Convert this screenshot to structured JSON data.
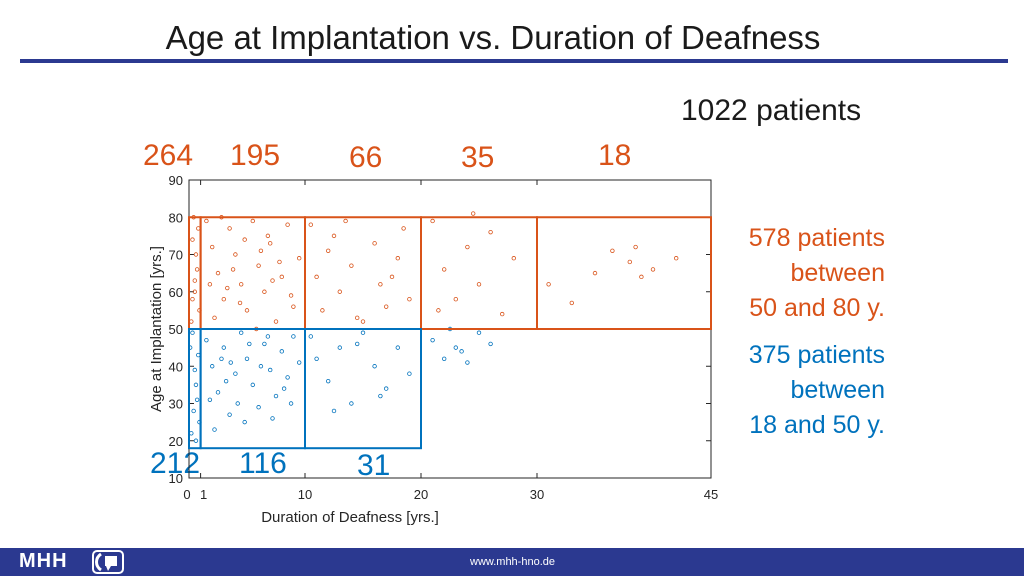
{
  "slide": {
    "title": "Age at Implantation vs. Duration of Deafness",
    "patients_total": "1022 patients",
    "side_text_orange": [
      "578 patients",
      "between",
      "50 and 80 y."
    ],
    "side_text_blue": [
      "375 patients",
      "between",
      "18 and 50 y."
    ]
  },
  "counts": {
    "orange": [
      "264",
      "195",
      "66",
      "35",
      "18"
    ],
    "blue": [
      "212",
      "116",
      "31"
    ]
  },
  "footer": {
    "logo": "MHH",
    "url": "www.mhh-hno.de"
  },
  "colors": {
    "orange": "#d95319",
    "blue": "#0072bd",
    "accent": "#2b3990"
  },
  "chart_data": {
    "type": "scatter",
    "title": "",
    "xlabel": "Duration of Deafness [yrs.]",
    "ylabel": "Age at Implantation [yrs.]",
    "xlim": [
      0,
      45
    ],
    "ylim": [
      10,
      90
    ],
    "xticks": [
      0,
      1,
      10,
      20,
      30,
      45
    ],
    "yticks": [
      10,
      20,
      30,
      40,
      50,
      60,
      70,
      80,
      90
    ],
    "grid": false,
    "series": [
      {
        "name": "50-80 y.",
        "color": "#d95319",
        "points": [
          [
            0.2,
            52
          ],
          [
            0.3,
            58
          ],
          [
            0.5,
            63
          ],
          [
            0.6,
            70
          ],
          [
            0.8,
            77
          ],
          [
            0.4,
            80
          ],
          [
            0.7,
            66
          ],
          [
            0.3,
            74
          ],
          [
            0.9,
            55
          ],
          [
            0.5,
            60
          ],
          [
            1.5,
            79
          ],
          [
            2,
            72
          ],
          [
            2.5,
            65
          ],
          [
            3,
            58
          ],
          [
            3.5,
            77
          ],
          [
            4,
            70
          ],
          [
            4.5,
            62
          ],
          [
            5,
            55
          ],
          [
            5.5,
            79
          ],
          [
            6,
            67
          ],
          [
            6.5,
            60
          ],
          [
            7,
            73
          ],
          [
            7.5,
            52
          ],
          [
            8,
            64
          ],
          [
            8.5,
            78
          ],
          [
            9,
            56
          ],
          [
            9.5,
            69
          ],
          [
            2.2,
            53
          ],
          [
            3.3,
            61
          ],
          [
            4.8,
            74
          ],
          [
            5.8,
            50
          ],
          [
            6.8,
            75
          ],
          [
            7.8,
            68
          ],
          [
            8.8,
            59
          ],
          [
            1.8,
            62
          ],
          [
            2.8,
            80
          ],
          [
            3.8,
            66
          ],
          [
            4.4,
            57
          ],
          [
            6.2,
            71
          ],
          [
            7.2,
            63
          ],
          [
            10.5,
            78
          ],
          [
            11,
            64
          ],
          [
            11.5,
            55
          ],
          [
            12,
            71
          ],
          [
            13,
            60
          ],
          [
            13.5,
            79
          ],
          [
            14,
            67
          ],
          [
            15,
            52
          ],
          [
            16,
            73
          ],
          [
            16.5,
            62
          ],
          [
            17,
            56
          ],
          [
            18,
            69
          ],
          [
            18.5,
            77
          ],
          [
            19,
            58
          ],
          [
            12.5,
            75
          ],
          [
            14.5,
            53
          ],
          [
            17.5,
            64
          ],
          [
            21,
            79
          ],
          [
            22,
            66
          ],
          [
            23,
            58
          ],
          [
            24,
            72
          ],
          [
            25,
            62
          ],
          [
            26,
            76
          ],
          [
            27,
            54
          ],
          [
            28,
            69
          ],
          [
            24.5,
            81
          ],
          [
            21.5,
            55
          ],
          [
            31,
            62
          ],
          [
            33,
            57
          ],
          [
            35,
            65
          ],
          [
            36.5,
            71
          ],
          [
            38,
            68
          ],
          [
            38.5,
            72
          ],
          [
            40,
            66
          ],
          [
            42,
            69
          ],
          [
            39,
            64
          ]
        ]
      },
      {
        "name": "18-50 y.",
        "color": "#0072bd",
        "points": [
          [
            0.2,
            22
          ],
          [
            0.4,
            28
          ],
          [
            0.6,
            35
          ],
          [
            0.8,
            43
          ],
          [
            0.3,
            49
          ],
          [
            0.7,
            31
          ],
          [
            0.5,
            39
          ],
          [
            0.9,
            25
          ],
          [
            0.1,
            45
          ],
          [
            0.6,
            20
          ],
          [
            1.5,
            47
          ],
          [
            2,
            40
          ],
          [
            2.5,
            33
          ],
          [
            3,
            45
          ],
          [
            3.5,
            27
          ],
          [
            4,
            38
          ],
          [
            4.5,
            49
          ],
          [
            5,
            42
          ],
          [
            5.5,
            35
          ],
          [
            6,
            29
          ],
          [
            6.5,
            46
          ],
          [
            7,
            39
          ],
          [
            7.5,
            32
          ],
          [
            8,
            44
          ],
          [
            8.5,
            37
          ],
          [
            9,
            48
          ],
          [
            9.5,
            41
          ],
          [
            2.2,
            23
          ],
          [
            3.2,
            36
          ],
          [
            4.2,
            30
          ],
          [
            5.2,
            46
          ],
          [
            6.2,
            40
          ],
          [
            7.2,
            26
          ],
          [
            8.2,
            34
          ],
          [
            1.8,
            31
          ],
          [
            2.8,
            42
          ],
          [
            4.8,
            25
          ],
          [
            6.8,
            48
          ],
          [
            8.8,
            30
          ],
          [
            3.6,
            41
          ],
          [
            10.5,
            48
          ],
          [
            11,
            42
          ],
          [
            12,
            36
          ],
          [
            13,
            45
          ],
          [
            14,
            30
          ],
          [
            15,
            49
          ],
          [
            16,
            40
          ],
          [
            17,
            34
          ],
          [
            18,
            45
          ],
          [
            19,
            38
          ],
          [
            12.5,
            28
          ],
          [
            14.5,
            46
          ],
          [
            16.5,
            32
          ],
          [
            21,
            47
          ],
          [
            22,
            42
          ],
          [
            23,
            45
          ],
          [
            24,
            41
          ],
          [
            25,
            49
          ],
          [
            26,
            46
          ],
          [
            22.5,
            50
          ],
          [
            23.5,
            44
          ]
        ]
      }
    ],
    "boxes": [
      {
        "color": "#d95319",
        "x": [
          0,
          1
        ],
        "y": [
          50,
          80
        ]
      },
      {
        "color": "#d95319",
        "x": [
          1,
          10
        ],
        "y": [
          50,
          80
        ]
      },
      {
        "color": "#d95319",
        "x": [
          10,
          20
        ],
        "y": [
          50,
          80
        ]
      },
      {
        "color": "#d95319",
        "x": [
          20,
          30
        ],
        "y": [
          50,
          80
        ]
      },
      {
        "color": "#d95319",
        "x": [
          30,
          45
        ],
        "y": [
          50,
          80
        ]
      },
      {
        "color": "#0072bd",
        "x": [
          0,
          1
        ],
        "y": [
          18,
          50
        ]
      },
      {
        "color": "#0072bd",
        "x": [
          1,
          10
        ],
        "y": [
          18,
          50
        ]
      },
      {
        "color": "#0072bd",
        "x": [
          10,
          20
        ],
        "y": [
          18,
          50
        ]
      }
    ]
  }
}
